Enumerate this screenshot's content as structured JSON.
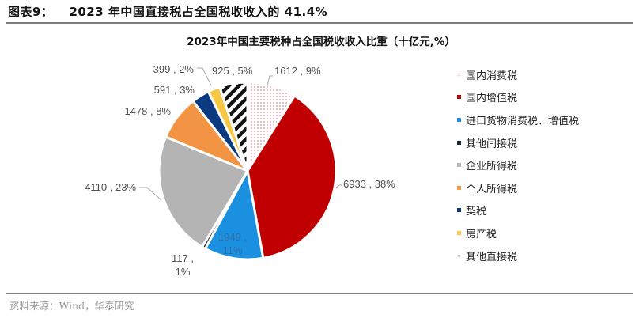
{
  "figure": {
    "label": "图表9：",
    "title": "2023 年中国直接税占全国税收收入的 41.4%"
  },
  "source": "资料来源：Wind，华泰研究",
  "chart_data": {
    "type": "pie",
    "title": "2023年中国主要税种占全国税收收入比重（十亿元,%）",
    "unit": "十亿元",
    "start_angle": "12 o'clock",
    "direction": "clockwise",
    "legend_position": "right",
    "categories": [
      "国内消费税",
      "国内增值税",
      "进口货物消费税、增值税",
      "其他间接税",
      "企业所得税",
      "个人所得税",
      "契税",
      "房产税",
      "其他直接税"
    ],
    "values": [
      1612,
      6933,
      1949,
      117,
      4110,
      1478,
      591,
      399,
      925
    ],
    "percentages": [
      9,
      38,
      11,
      1,
      23,
      8,
      3,
      2,
      5
    ],
    "data_labels": [
      "1612 , 9%",
      "6933 , 38%",
      "1949 , 11%",
      "117 , 1%",
      "4110 , 23%",
      "1478 , 8%",
      "591 , 3%",
      "399 , 2%",
      "925 , 5%"
    ],
    "colors": [
      "#f4c7cb",
      "#c00000",
      "#1b8fe0",
      "#1f2d3a",
      "#b4b4b4",
      "#f29443",
      "#0b3a80",
      "#f7c843",
      "#111111"
    ],
    "fills": [
      "dotted-pattern",
      "solid",
      "solid",
      "solid",
      "solid",
      "solid",
      "solid",
      "solid",
      "diagonal-stripes"
    ]
  },
  "legend": {
    "items": [
      {
        "label": "国内消费税",
        "color": "#e8a7ad",
        "marker": "dotted"
      },
      {
        "label": "国内增值税",
        "color": "#c00000",
        "marker": "solid"
      },
      {
        "label": "进口货物消费税、增值税",
        "color": "#1b8fe0",
        "marker": "solid"
      },
      {
        "label": "其他间接税",
        "color": "#1f2d3a",
        "marker": "solid"
      },
      {
        "label": "企业所得税",
        "color": "#b4b4b4",
        "marker": "solid"
      },
      {
        "label": "个人所得税",
        "color": "#f29443",
        "marker": "solid"
      },
      {
        "label": "契税",
        "color": "#0b3a80",
        "marker": "solid"
      },
      {
        "label": "房产税",
        "color": "#f7c843",
        "marker": "solid"
      },
      {
        "label": "其他直接税",
        "color": "#555555",
        "marker": "striped"
      }
    ]
  }
}
